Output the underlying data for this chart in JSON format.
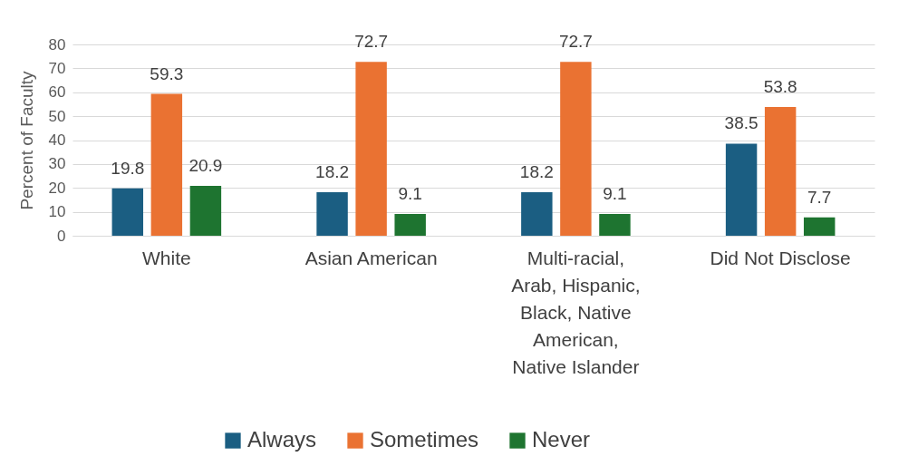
{
  "chart_data": {
    "type": "bar",
    "ylabel": "Percent of Faculty",
    "categories": [
      "White",
      "Asian American",
      "Multi-racial, Arab, Hispanic, Black, Native American, Native Islander",
      "Did Not Disclose"
    ],
    "series": [
      {
        "name": "Always",
        "color": "#1b5e82",
        "values": [
          19.8,
          18.2,
          18.2,
          38.5
        ]
      },
      {
        "name": "Sometimes",
        "color": "#ea7232",
        "values": [
          59.3,
          72.7,
          72.7,
          53.8
        ]
      },
      {
        "name": "Never",
        "color": "#1e7430",
        "values": [
          20.9,
          9.1,
          9.1,
          7.7
        ]
      }
    ],
    "ylim": [
      0,
      80
    ],
    "yticks": [
      0,
      10,
      20,
      30,
      40,
      50,
      60,
      70,
      80
    ],
    "grid": "y",
    "legend": "bottom",
    "data_labels": true
  }
}
